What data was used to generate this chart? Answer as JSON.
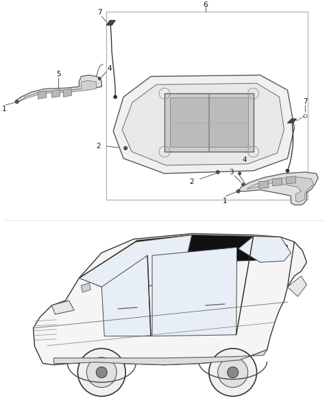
{
  "bg_color": "#ffffff",
  "lc": "#444444",
  "fig_width": 4.8,
  "fig_height": 6.12,
  "dpi": 100
}
